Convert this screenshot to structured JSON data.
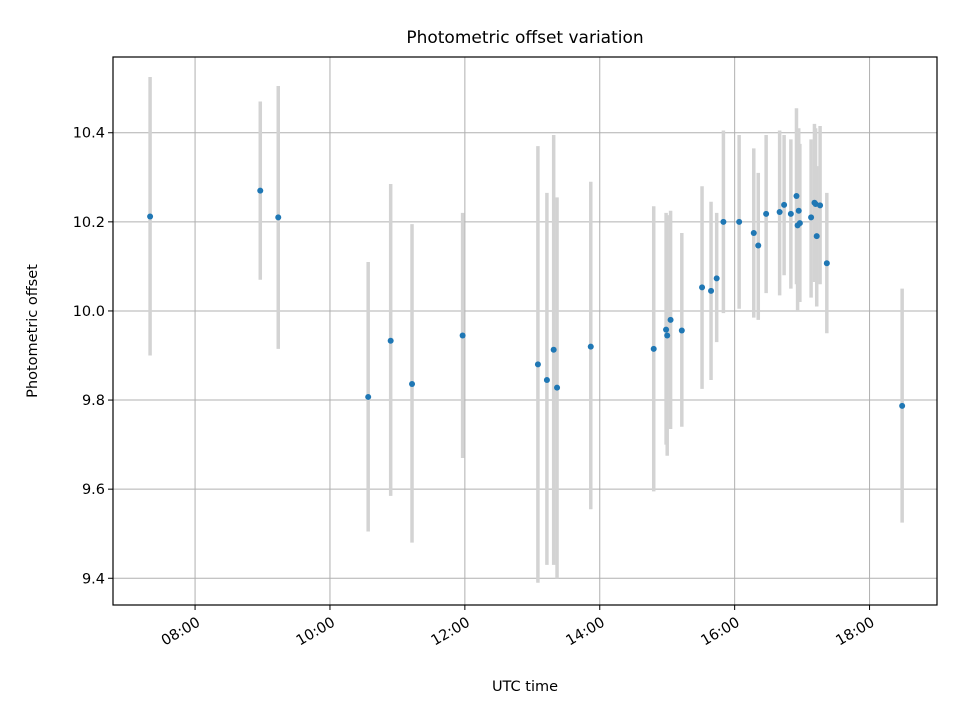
{
  "chart_data": {
    "type": "scatter",
    "title": "Photometric offset variation",
    "xlabel": "UTC time",
    "ylabel": "Photometric offset",
    "x_unit": "hours UTC",
    "xlim": [
      "06:47",
      "19:00"
    ],
    "ylim": [
      9.34,
      10.57
    ],
    "x_ticks": [
      "08:00",
      "10:00",
      "12:00",
      "14:00",
      "16:00",
      "18:00"
    ],
    "y_ticks": [
      "9.4",
      "9.6",
      "9.8",
      "10.0",
      "10.2",
      "10.4"
    ],
    "grid": true,
    "colors": {
      "point": "#1f77b4",
      "errorbar": "#d3d3d3",
      "grid": "#b0b0b0"
    },
    "series": [
      {
        "points": [
          {
            "t": "07:20",
            "y": 10.212,
            "lo": 9.9,
            "hi": 10.525
          },
          {
            "t": "08:58",
            "y": 10.27,
            "lo": 10.07,
            "hi": 10.47
          },
          {
            "t": "09:14",
            "y": 10.21,
            "lo": 9.915,
            "hi": 10.505
          },
          {
            "t": "10:34",
            "y": 9.807,
            "lo": 9.505,
            "hi": 10.11
          },
          {
            "t": "10:54",
            "y": 9.933,
            "lo": 9.585,
            "hi": 10.285
          },
          {
            "t": "11:13",
            "y": 9.836,
            "lo": 9.48,
            "hi": 10.195
          },
          {
            "t": "11:58",
            "y": 9.945,
            "lo": 9.67,
            "hi": 10.22
          },
          {
            "t": "13:05",
            "y": 9.88,
            "lo": 9.39,
            "hi": 10.37
          },
          {
            "t": "13:13",
            "y": 9.845,
            "lo": 9.43,
            "hi": 10.265
          },
          {
            "t": "13:19",
            "y": 9.913,
            "lo": 9.43,
            "hi": 10.395
          },
          {
            "t": "13:22",
            "y": 9.828,
            "lo": 9.4,
            "hi": 10.255
          },
          {
            "t": "13:52",
            "y": 9.92,
            "lo": 9.555,
            "hi": 10.29
          },
          {
            "t": "14:48",
            "y": 9.915,
            "lo": 9.595,
            "hi": 10.235
          },
          {
            "t": "14:59",
            "y": 9.958,
            "lo": 9.7,
            "hi": 10.22
          },
          {
            "t": "15:00",
            "y": 9.945,
            "lo": 9.675,
            "hi": 10.215
          },
          {
            "t": "15:03",
            "y": 9.98,
            "lo": 9.735,
            "hi": 10.225
          },
          {
            "t": "15:13",
            "y": 9.956,
            "lo": 9.74,
            "hi": 10.175
          },
          {
            "t": "15:31",
            "y": 10.053,
            "lo": 9.825,
            "hi": 10.28
          },
          {
            "t": "15:39",
            "y": 10.045,
            "lo": 9.845,
            "hi": 10.245
          },
          {
            "t": "15:44",
            "y": 10.073,
            "lo": 9.93,
            "hi": 10.22
          },
          {
            "t": "15:50",
            "y": 10.2,
            "lo": 9.995,
            "hi": 10.405
          },
          {
            "t": "16:04",
            "y": 10.2,
            "lo": 10.005,
            "hi": 10.395
          },
          {
            "t": "16:17",
            "y": 10.175,
            "lo": 9.985,
            "hi": 10.365
          },
          {
            "t": "16:21",
            "y": 10.147,
            "lo": 9.98,
            "hi": 10.31
          },
          {
            "t": "16:28",
            "y": 10.218,
            "lo": 10.04,
            "hi": 10.395
          },
          {
            "t": "16:40",
            "y": 10.222,
            "lo": 10.035,
            "hi": 10.405
          },
          {
            "t": "16:44",
            "y": 10.238,
            "lo": 10.08,
            "hi": 10.395
          },
          {
            "t": "16:50",
            "y": 10.218,
            "lo": 10.05,
            "hi": 10.385
          },
          {
            "t": "16:55",
            "y": 10.258,
            "lo": 10.06,
            "hi": 10.455
          },
          {
            "t": "16:56",
            "y": 10.192,
            "lo": 10.0,
            "hi": 10.385
          },
          {
            "t": "16:57",
            "y": 10.225,
            "lo": 10.04,
            "hi": 10.41
          },
          {
            "t": "16:58",
            "y": 10.197,
            "lo": 10.02,
            "hi": 10.375
          },
          {
            "t": "17:08",
            "y": 10.21,
            "lo": 10.03,
            "hi": 10.385
          },
          {
            "t": "17:11",
            "y": 10.243,
            "lo": 10.065,
            "hi": 10.42
          },
          {
            "t": "17:12",
            "y": 10.24,
            "lo": 10.07,
            "hi": 10.41
          },
          {
            "t": "17:13",
            "y": 10.168,
            "lo": 10.01,
            "hi": 10.325
          },
          {
            "t": "17:16",
            "y": 10.237,
            "lo": 10.06,
            "hi": 10.415
          },
          {
            "t": "17:22",
            "y": 10.107,
            "lo": 9.95,
            "hi": 10.265
          },
          {
            "t": "18:29",
            "y": 9.787,
            "lo": 9.525,
            "hi": 10.05
          }
        ]
      }
    ]
  }
}
